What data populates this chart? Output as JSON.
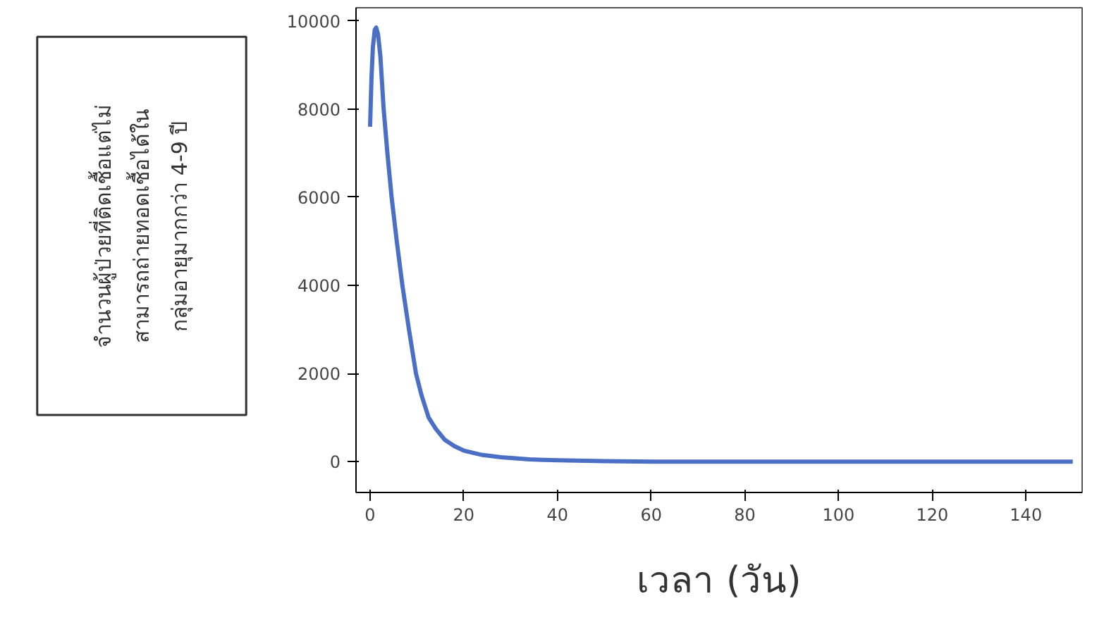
{
  "chart_data": {
    "type": "line",
    "ylabel": "จำนวนผู้ป่วยที่ติดเชื้อแต่ไม่\nสามารถถ่ายทอดเชื้อได้ใน\nกลุ่มอายุมากกว่า 4-9 ปี",
    "xlabel": "เวลา (วัน)",
    "series": [
      {
        "color": "#4a6fc4",
        "x": [
          0,
          0.3,
          0.6,
          1,
          1.3,
          1.7,
          2.2,
          2.9,
          3.7,
          4.6,
          5.7,
          6.9,
          8.3,
          9.8,
          11,
          12.5,
          14,
          15.9,
          18,
          20,
          24,
          28,
          34,
          40,
          50,
          60,
          80,
          100,
          120,
          150
        ],
        "values": [
          7600,
          8700,
          9400,
          9800,
          9850,
          9700,
          9200,
          8000,
          7000,
          6000,
          5000,
          4000,
          3000,
          2000,
          1500,
          1000,
          750,
          500,
          350,
          250,
          150,
          100,
          50,
          30,
          10,
          0,
          0,
          0,
          0,
          0
        ]
      }
    ],
    "xlim": [
      -3,
      152
    ],
    "ylim": [
      -700,
      10300
    ],
    "xticks": [
      0,
      20,
      40,
      60,
      80,
      100,
      120,
      140
    ],
    "yticks": [
      0,
      2000,
      4000,
      6000,
      8000,
      10000
    ],
    "grid": false
  }
}
